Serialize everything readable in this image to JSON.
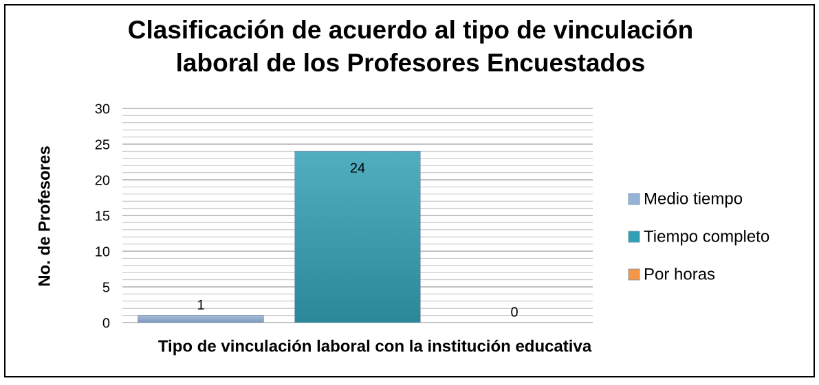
{
  "chart_data": {
    "type": "bar",
    "title": "Clasificación de acuerdo al tipo de vinculación\nlaboral de los Profesores Encuestados",
    "x_label": "Tipo de vinculación laboral con la institución educativa",
    "y_label": "No. de Profesores",
    "categories": [
      null
    ],
    "series": [
      {
        "name": "Medio tiempo",
        "color": "#95b3d7",
        "values": [
          1
        ]
      },
      {
        "name": "Tiempo completo",
        "color": "#31a0b4",
        "values": [
          24
        ]
      },
      {
        "name": "Por horas",
        "color": "#f79646",
        "values": [
          0
        ]
      }
    ],
    "ylim": [
      0,
      30
    ],
    "yticks": [
      0,
      5,
      10,
      15,
      20,
      25,
      30
    ],
    "yminor_ticks": [
      1,
      2,
      3,
      4,
      6,
      7,
      8,
      9,
      11,
      12,
      13,
      14,
      16,
      17,
      18,
      19,
      21,
      22,
      23,
      24,
      26,
      27,
      28,
      29
    ],
    "grid": true,
    "legend": "right"
  }
}
